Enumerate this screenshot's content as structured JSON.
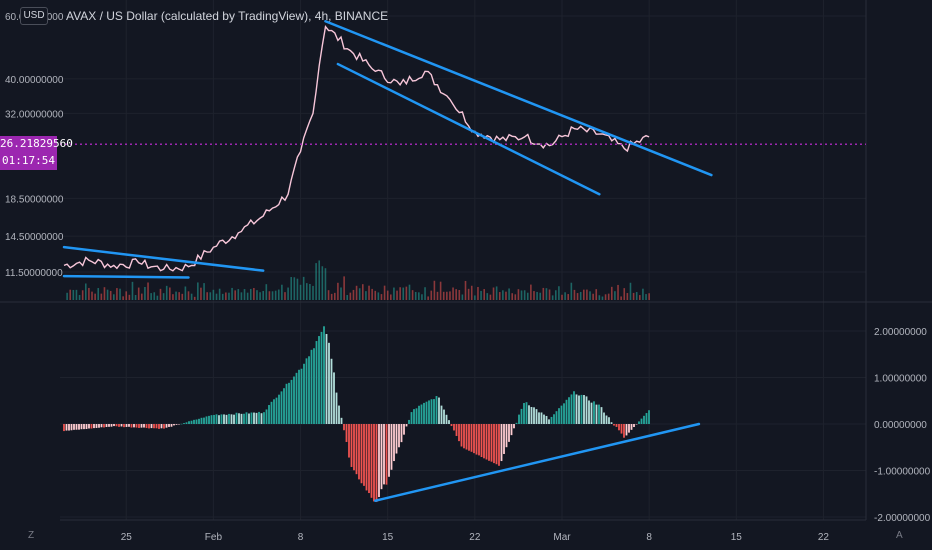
{
  "header": {
    "currency": "USD",
    "title": "AVAX / US Dollar (calculated by TradingView), 4h, BINANCE"
  },
  "price_marker": {
    "price": "26.21829560",
    "countdown": "01:17:54"
  },
  "footer": {
    "left_button": "Z",
    "right_button": "A"
  },
  "colors": {
    "background": "#131722",
    "price_line": "#f7c6d9",
    "trendline": "#2196f3",
    "up": "#26a69a",
    "down": "#ef5350",
    "marker": "#9c27b0"
  },
  "chart_data": [
    {
      "type": "line",
      "title": "AVAX / US Dollar (calculated by TradingView), 4h, BINANCE",
      "y_scale": "log",
      "y_ticks": [
        "60.00000000",
        "40.00000000",
        "32.00000000",
        "18.50000000",
        "14.50000000",
        "11.50000000"
      ],
      "x_ticks": [
        "25",
        "Feb",
        "8",
        "15",
        "22",
        "Mar",
        "8",
        "15",
        "22"
      ],
      "series": [
        {
          "x": [
            "Jan 20",
            "Jan 22",
            "Jan 24",
            "Jan 26",
            "Jan 28",
            "Jan 30",
            "Feb 1",
            "Feb 3",
            "Feb 5",
            "Feb 7",
            "Feb 8",
            "Feb 9",
            "Feb 10",
            "Feb 12",
            "Feb 14",
            "Feb 16",
            "Feb 18",
            "Feb 20",
            "Feb 22",
            "Feb 24",
            "Feb 26",
            "Feb 28",
            "Mar 2",
            "Mar 4",
            "Mar 6",
            "Mar 8"
          ],
          "y": [
            12.0,
            12.4,
            12.0,
            12.2,
            11.7,
            11.9,
            13.5,
            14.8,
            16.5,
            19.0,
            25.0,
            32.0,
            56.0,
            48.0,
            42.0,
            38.5,
            42.0,
            35.0,
            28.5,
            27.0,
            27.5,
            26.0,
            29.0,
            28.0,
            25.5,
            27.5
          ]
        }
      ],
      "current_price": 26.2182956
    },
    {
      "type": "bar",
      "title": "",
      "y_ticks": [
        "2.00000000",
        "1.00000000",
        "0.00000000",
        "-1.00000000",
        "-2.00000000"
      ],
      "series": [
        {
          "x": [
            "Jan 20",
            "Jan 24",
            "Jan 28",
            "Feb 1",
            "Feb 5",
            "Feb 8",
            "Feb 10",
            "Feb 12",
            "Feb 14",
            "Feb 15",
            "Feb 17",
            "Feb 19",
            "Feb 21",
            "Feb 24",
            "Feb 26",
            "Feb 28",
            "Mar 2",
            "Mar 4",
            "Mar 6",
            "Mar 8"
          ],
          "y": [
            -0.15,
            -0.05,
            -0.1,
            0.2,
            0.25,
            1.2,
            2.1,
            -0.9,
            -1.7,
            -1.2,
            0.3,
            0.6,
            -0.5,
            -0.9,
            0.5,
            0.1,
            0.7,
            0.4,
            -0.3,
            0.3
          ]
        }
      ]
    }
  ]
}
